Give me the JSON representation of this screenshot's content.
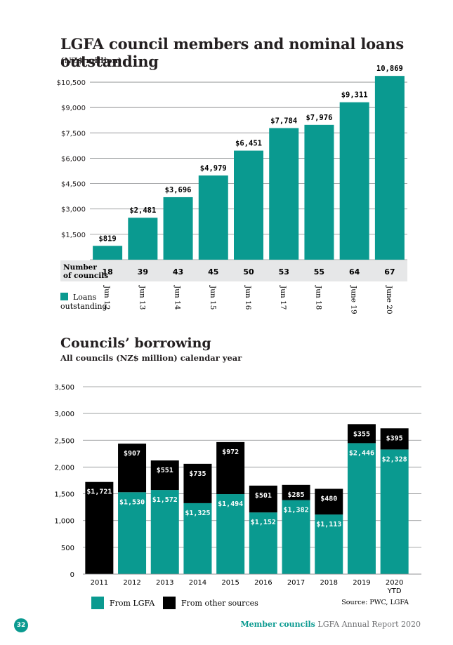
{
  "chart_data": [
    {
      "type": "bar",
      "title": "LGFA council members and nominal loans outstanding",
      "subtitle": "(NZ$ million)",
      "categories": [
        "Jun 12",
        "Jun 13",
        "Jun 14",
        "Jun 15",
        "Jun 16",
        "Jun 17",
        "Jun 18",
        "June 19",
        "June 20"
      ],
      "values": [
        819,
        2481,
        3696,
        4979,
        6451,
        7784,
        7976,
        9311,
        10869
      ],
      "value_labels": [
        "$819",
        "$2,481",
        "$3,696",
        "$4,979",
        "$6,451",
        "$7,784",
        "$7,976",
        "$9,311",
        "10,869"
      ],
      "yticks": [
        1500,
        3000,
        4500,
        6000,
        7500,
        9000,
        10500
      ],
      "ytick_labels": [
        "$1,500",
        "$3,000",
        "$4,500",
        "$6,000",
        "$7,500",
        "$9,000",
        "$10,500"
      ],
      "ylim": [
        0,
        11000
      ],
      "councils_label": [
        "Number",
        "of councils"
      ],
      "councils": [
        "18",
        "39",
        "43",
        "45",
        "50",
        "53",
        "55",
        "64",
        "67"
      ],
      "legend": {
        "label_line1": "Loans",
        "label_line2": "outstanding",
        "placement": "bottom-left"
      },
      "color": "#0a9a90"
    },
    {
      "type": "bar",
      "stacked": true,
      "title": "Councils’ borrowing",
      "subtitle": "All councils (NZ$ million) calendar year",
      "categories": [
        "2011",
        "2012",
        "2013",
        "2014",
        "2015",
        "2016",
        "2017",
        "2018",
        "2019",
        "2020"
      ],
      "category_sublabels": [
        "",
        "",
        "",
        "",
        "",
        "",
        "",
        "",
        "",
        "YTD"
      ],
      "series": [
        {
          "name": "From LGFA",
          "color": "#0a9a90",
          "values": [
            0,
            1530,
            1572,
            1325,
            1494,
            1152,
            1382,
            1113,
            2446,
            2328
          ],
          "labels": [
            "",
            "$1,530",
            "$1,572",
            "$1,325",
            "$1,494",
            "$1,152",
            "$1,382",
            "$1,113",
            "$2,446",
            "$2,328"
          ]
        },
        {
          "name": "From other sources",
          "color": "#000000",
          "values": [
            1721,
            907,
            551,
            735,
            972,
            501,
            285,
            480,
            355,
            395
          ],
          "labels": [
            "$1,721",
            "$907",
            "$551",
            "$735",
            "$972",
            "$501",
            "$285",
            "$480",
            "$355",
            "$395"
          ]
        }
      ],
      "yticks": [
        0,
        500,
        1000,
        1500,
        2000,
        2500,
        3000,
        3500
      ],
      "ytick_labels": [
        "0",
        "500",
        "1,000",
        "1,500",
        "2,000",
        "2,500",
        "3,000",
        "3,500"
      ],
      "ylim": [
        0,
        3500
      ],
      "legend_placement": "bottom-left",
      "source": "Source: PWC, LGFA"
    }
  ],
  "footer": {
    "page": "32",
    "section": "Member councils",
    "report": " LGFA Annual Report 2020"
  }
}
